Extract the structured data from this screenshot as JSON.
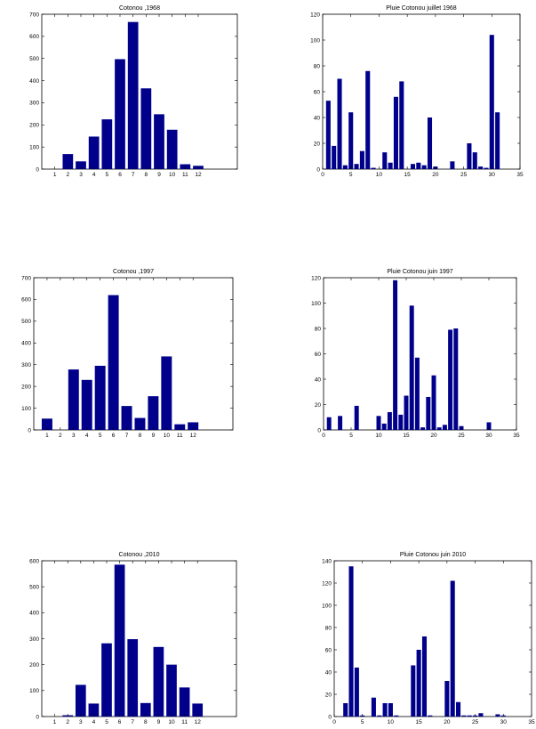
{
  "bar_color": "#00008B",
  "chart_data": [
    {
      "type": "bar",
      "title": "Cotonou ,1968",
      "x_ticks": [
        1,
        2,
        3,
        4,
        5,
        6,
        7,
        8,
        9,
        10,
        11,
        12
      ],
      "xlim": [
        0,
        15
      ],
      "ylim": [
        0,
        700
      ],
      "y_ticks": [
        0,
        100,
        200,
        300,
        400,
        500,
        600,
        700
      ],
      "x": [
        1,
        2,
        3,
        4,
        5,
        6,
        7,
        8,
        9,
        10,
        11,
        12
      ],
      "values": [
        0,
        68,
        35,
        147,
        225,
        497,
        665,
        365,
        248,
        178,
        22,
        15
      ]
    },
    {
      "type": "bar",
      "title": "Pluie Cotonou juillet 1968",
      "x_ticks": [
        0,
        5,
        10,
        15,
        20,
        25,
        30,
        35
      ],
      "xlim": [
        0,
        35
      ],
      "ylim": [
        0,
        120
      ],
      "y_ticks": [
        0,
        20,
        40,
        60,
        80,
        100,
        120
      ],
      "x": [
        1,
        2,
        3,
        4,
        5,
        6,
        7,
        8,
        9,
        10,
        11,
        12,
        13,
        14,
        15,
        16,
        17,
        18,
        19,
        20,
        21,
        22,
        23,
        24,
        25,
        26,
        27,
        28,
        29,
        30,
        31
      ],
      "values": [
        53,
        18,
        70,
        3,
        44,
        4,
        14,
        76,
        1,
        0,
        13,
        5,
        56,
        68,
        0,
        4,
        5,
        3,
        40,
        2,
        0,
        0,
        6,
        0,
        0,
        20,
        13,
        2,
        1,
        104,
        44
      ]
    },
    {
      "type": "bar",
      "title": "Cotonou ,1997",
      "x_ticks": [
        1,
        2,
        3,
        4,
        5,
        6,
        7,
        8,
        9,
        10,
        11,
        12
      ],
      "xlim": [
        0,
        15
      ],
      "ylim": [
        0,
        700
      ],
      "y_ticks": [
        0,
        100,
        200,
        300,
        400,
        500,
        600,
        700
      ],
      "x": [
        1,
        2,
        3,
        4,
        5,
        6,
        7,
        8,
        9,
        10,
        11,
        12
      ],
      "values": [
        52,
        0,
        278,
        230,
        295,
        620,
        110,
        55,
        155,
        338,
        26,
        35
      ]
    },
    {
      "type": "bar",
      "title": "Pluie Cotonou juin 1997",
      "x_ticks": [
        0,
        5,
        10,
        15,
        20,
        25,
        30,
        35
      ],
      "xlim": [
        0,
        35
      ],
      "ylim": [
        0,
        120
      ],
      "y_ticks": [
        0,
        20,
        40,
        60,
        80,
        100,
        120
      ],
      "x": [
        1,
        2,
        3,
        4,
        5,
        6,
        7,
        8,
        9,
        10,
        11,
        12,
        13,
        14,
        15,
        16,
        17,
        18,
        19,
        20,
        21,
        22,
        23,
        24,
        25,
        26,
        27,
        28,
        29,
        30
      ],
      "values": [
        10,
        0,
        11,
        0,
        0,
        19,
        0,
        0,
        0,
        11,
        5,
        14,
        118,
        12,
        27,
        98,
        57,
        2,
        26,
        43,
        2,
        4,
        79,
        80,
        3,
        0,
        0,
        0,
        0,
        6
      ]
    },
    {
      "type": "bar",
      "title": "Cotonou ,2010",
      "x_ticks": [
        1,
        2,
        3,
        4,
        5,
        6,
        7,
        8,
        9,
        10,
        11,
        12
      ],
      "xlim": [
        0,
        15
      ],
      "ylim": [
        0,
        600
      ],
      "y_ticks": [
        0,
        100,
        200,
        300,
        400,
        500,
        600
      ],
      "x": [
        1,
        2,
        3,
        4,
        5,
        6,
        7,
        8,
        9,
        10,
        11,
        12
      ],
      "values": [
        0,
        5,
        122,
        50,
        282,
        585,
        298,
        52,
        268,
        200,
        112,
        50
      ]
    },
    {
      "type": "bar",
      "title": "Pluie Cotonou juin 2010",
      "x_ticks": [
        0,
        5,
        10,
        15,
        20,
        25,
        30,
        35
      ],
      "xlim": [
        0,
        35
      ],
      "ylim": [
        0,
        140
      ],
      "y_ticks": [
        0,
        20,
        40,
        60,
        80,
        100,
        120,
        140
      ],
      "x": [
        1,
        2,
        3,
        4,
        5,
        6,
        7,
        8,
        9,
        10,
        11,
        12,
        13,
        14,
        15,
        16,
        17,
        18,
        19,
        20,
        21,
        22,
        23,
        24,
        25,
        26,
        27,
        28,
        29,
        30
      ],
      "values": [
        0,
        12,
        135,
        44,
        1,
        0,
        17,
        1,
        12,
        12,
        1,
        0,
        0,
        46,
        60,
        72,
        1,
        0,
        0,
        32,
        122,
        13,
        1,
        1,
        1,
        3,
        0,
        0,
        2,
        1
      ]
    }
  ]
}
